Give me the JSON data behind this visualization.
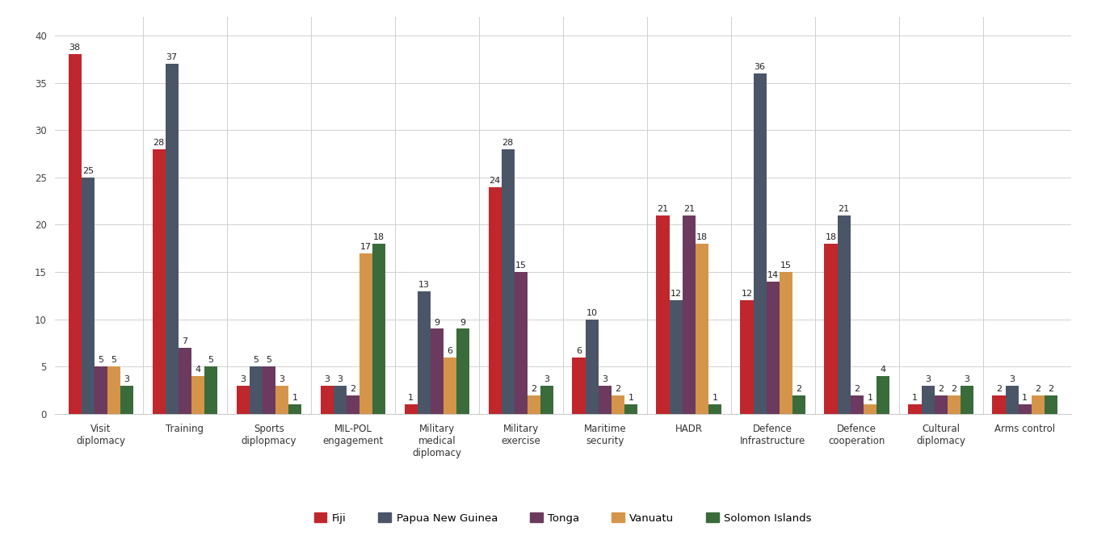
{
  "categories": [
    "Visit\ndiplomacy",
    "Training",
    "Sports\ndiplopmacy",
    "MIL-POL\nengagement",
    "Military\nmedical\ndiplomacy",
    "Military\nexercise",
    "Maritime\nsecurity",
    "HADR",
    "Defence\nInfrastructure",
    "Defence\ncooperation",
    "Cultural\ndiplomacy",
    "Arms control"
  ],
  "countries": [
    "Fiji",
    "Papua New Guinea",
    "Tonga",
    "Vanuatu",
    "Solomon Islands"
  ],
  "colors": [
    "#c0272d",
    "#4a5568",
    "#6b3a5e",
    "#d4954a",
    "#3a6b3a"
  ],
  "data": {
    "Fiji": [
      38,
      28,
      3,
      3,
      1,
      24,
      6,
      21,
      12,
      18,
      1,
      2
    ],
    "Papua New Guinea": [
      25,
      37,
      5,
      3,
      13,
      28,
      10,
      12,
      36,
      21,
      3,
      3
    ],
    "Tonga": [
      5,
      7,
      5,
      2,
      9,
      15,
      3,
      21,
      14,
      2,
      2,
      1
    ],
    "Vanuatu": [
      5,
      4,
      3,
      17,
      6,
      2,
      2,
      18,
      15,
      1,
      2,
      2
    ],
    "Solomon Islands": [
      3,
      5,
      1,
      18,
      9,
      3,
      1,
      1,
      2,
      4,
      3,
      2
    ]
  },
  "ylim": [
    0,
    42
  ],
  "yticks": [
    0,
    5,
    10,
    15,
    20,
    25,
    30,
    35,
    40
  ],
  "bar_width": 0.155,
  "background_color": "#ffffff",
  "grid_color": "#d0d0d0",
  "label_fontsize": 8.0,
  "axis_label_fontsize": 8.5,
  "legend_fontsize": 9.5
}
